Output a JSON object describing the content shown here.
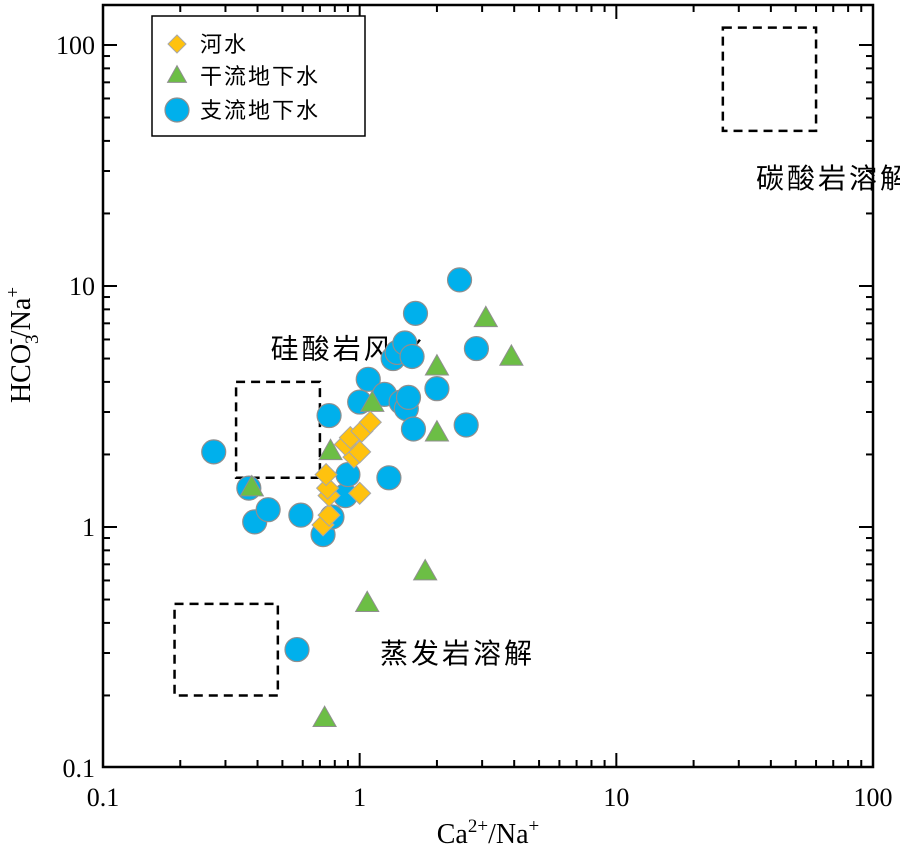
{
  "chart_data": {
    "type": "scatter",
    "x_scale": "log",
    "y_scale": "log",
    "xlim": [
      0.1,
      100
    ],
    "ylim": [
      0.1,
      150
    ],
    "xlabel": "Ca2+/Na+",
    "ylabel": "HCO3-/Na+",
    "x_ticks": [
      "0.1",
      "1",
      "10",
      "100"
    ],
    "y_ticks": [
      "0.1",
      "1",
      "10",
      "100"
    ],
    "grid": false,
    "legend_position": "top-left",
    "series": [
      {
        "name": "河水",
        "marker": "diamond",
        "color": "#FFC20E",
        "points": [
          [
            0.72,
            1.02
          ],
          [
            0.76,
            1.12
          ],
          [
            0.76,
            1.35
          ],
          [
            0.75,
            1.45
          ],
          [
            0.74,
            1.65
          ],
          [
            1.0,
            1.38
          ],
          [
            0.95,
            1.95
          ],
          [
            1.0,
            2.05
          ],
          [
            0.88,
            2.2
          ],
          [
            0.92,
            2.35
          ],
          [
            1.02,
            2.5
          ],
          [
            1.1,
            2.72
          ]
        ]
      },
      {
        "name": "干流地下水",
        "marker": "triangle",
        "color": "#6CBE45",
        "points": [
          [
            0.38,
            1.45
          ],
          [
            0.77,
            2.05
          ],
          [
            1.12,
            3.25
          ],
          [
            2.0,
            4.6
          ],
          [
            2.0,
            2.45
          ],
          [
            3.1,
            7.3
          ],
          [
            3.9,
            5.05
          ],
          [
            1.8,
            0.65
          ],
          [
            1.07,
            0.48
          ],
          [
            0.73,
            0.16
          ]
        ]
      },
      {
        "name": "支流地下水",
        "marker": "circle",
        "color": "#00B0EC",
        "points": [
          [
            0.27,
            2.05
          ],
          [
            0.37,
            1.45
          ],
          [
            0.39,
            1.05
          ],
          [
            0.44,
            1.18
          ],
          [
            0.59,
            1.12
          ],
          [
            0.72,
            0.93
          ],
          [
            0.78,
            1.1
          ],
          [
            0.76,
            2.9
          ],
          [
            0.88,
            1.35
          ],
          [
            0.9,
            1.65
          ],
          [
            1.0,
            3.3
          ],
          [
            1.08,
            4.1
          ],
          [
            1.25,
            3.55
          ],
          [
            1.3,
            1.6
          ],
          [
            1.35,
            5.0
          ],
          [
            1.4,
            5.3
          ],
          [
            1.45,
            3.3
          ],
          [
            1.5,
            5.8
          ],
          [
            1.52,
            3.1
          ],
          [
            1.55,
            3.45
          ],
          [
            1.6,
            5.1
          ],
          [
            1.62,
            2.55
          ],
          [
            1.65,
            7.7
          ],
          [
            2.0,
            3.75
          ],
          [
            2.45,
            10.6
          ],
          [
            2.6,
            2.65
          ],
          [
            2.85,
            5.5
          ],
          [
            0.57,
            0.31
          ]
        ]
      }
    ],
    "regions": [
      {
        "label": "碳酸岩溶解",
        "x_range": [
          26,
          60
        ],
        "y_range": [
          44,
          118
        ],
        "label_at": [
          35,
          28
        ]
      },
      {
        "label": "硅酸岩风化",
        "x_range": [
          0.33,
          0.7
        ],
        "y_range": [
          1.6,
          4.0
        ],
        "label_at": [
          0.45,
          5.5
        ]
      },
      {
        "label": "蒸发岩溶解",
        "x_range": [
          0.19,
          0.48
        ],
        "y_range": [
          0.2,
          0.48
        ],
        "label_at": [
          1.2,
          0.3
        ]
      }
    ]
  }
}
